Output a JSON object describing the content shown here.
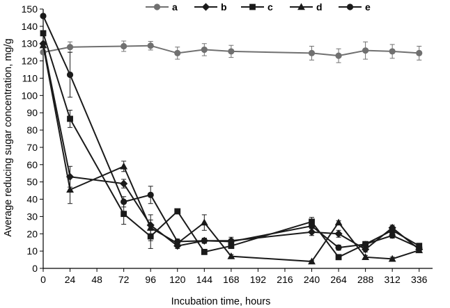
{
  "chart_data": {
    "type": "line",
    "title": "",
    "xlabel": "Incubation time, hours",
    "ylabel": "Average reducing sugar concentration, mg/g",
    "xlim": [
      0,
      348
    ],
    "ylim": [
      0,
      150
    ],
    "xticks": [
      0,
      24,
      48,
      72,
      96,
      120,
      144,
      168,
      192,
      216,
      240,
      264,
      288,
      312,
      336
    ],
    "yticks": [
      0,
      10,
      20,
      30,
      40,
      50,
      60,
      70,
      80,
      90,
      100,
      110,
      120,
      130,
      140,
      150
    ],
    "grid": false,
    "legend": "top",
    "series": [
      {
        "name": "a",
        "marker": "circle",
        "color": "#707070",
        "x": [
          0,
          24,
          72,
          96,
          120,
          144,
          168,
          240,
          264,
          288,
          312,
          336
        ],
        "y": [
          125,
          128,
          128.5,
          128.8,
          124.5,
          126.5,
          125.5,
          124.5,
          123,
          126,
          125.5,
          124.5
        ],
        "err": [
          0,
          3,
          3,
          2.5,
          3.5,
          3.5,
          3.5,
          4,
          4,
          5,
          4,
          4
        ]
      },
      {
        "name": "b",
        "marker": "diamond",
        "color": "#1a1a1a",
        "x": [
          0,
          24,
          72,
          96,
          120,
          144,
          168,
          240,
          264,
          288,
          312,
          336
        ],
        "y": [
          130,
          53,
          49,
          25,
          13,
          16,
          16,
          21,
          20,
          11,
          23.5,
          11
        ],
        "err": [
          0,
          6,
          2.5,
          3,
          1.5,
          1.5,
          2,
          2,
          2,
          1.5,
          1.5,
          1.5
        ]
      },
      {
        "name": "c",
        "marker": "square",
        "color": "#1a1a1a",
        "x": [
          0,
          24,
          72,
          96,
          120,
          144,
          168,
          240,
          264,
          288,
          312,
          336
        ],
        "y": [
          136,
          86.5,
          31.5,
          18.5,
          33,
          9.5,
          13,
          27,
          6.5,
          14,
          22,
          13
        ],
        "err": [
          0,
          5,
          6,
          7,
          1,
          1,
          1.5,
          2.5,
          1,
          1.5,
          1.5,
          1.5
        ]
      },
      {
        "name": "d",
        "marker": "triangle",
        "color": "#1a1a1a",
        "x": [
          0,
          24,
          72,
          96,
          120,
          144,
          168,
          240,
          264,
          288,
          312,
          336
        ],
        "y": [
          129,
          45.5,
          59,
          23.5,
          14.5,
          26.5,
          7,
          4,
          26.5,
          6.5,
          5.5,
          10.5
        ],
        "err": [
          0,
          8,
          3,
          7.5,
          1.5,
          4.5,
          1,
          0.5,
          1,
          1,
          1,
          1
        ]
      },
      {
        "name": "e",
        "marker": "circle",
        "color": "#1a1a1a",
        "x": [
          0,
          24,
          72,
          96,
          120,
          144,
          168,
          240,
          264,
          288,
          312,
          336
        ],
        "y": [
          146,
          112,
          38.5,
          42.5,
          15.5,
          16,
          15.5,
          24.5,
          12,
          14,
          19,
          12
        ],
        "err": [
          0,
          13,
          3,
          5,
          1.5,
          1.5,
          1.5,
          3.5,
          1.5,
          1.5,
          1.5,
          1.5
        ]
      }
    ]
  }
}
